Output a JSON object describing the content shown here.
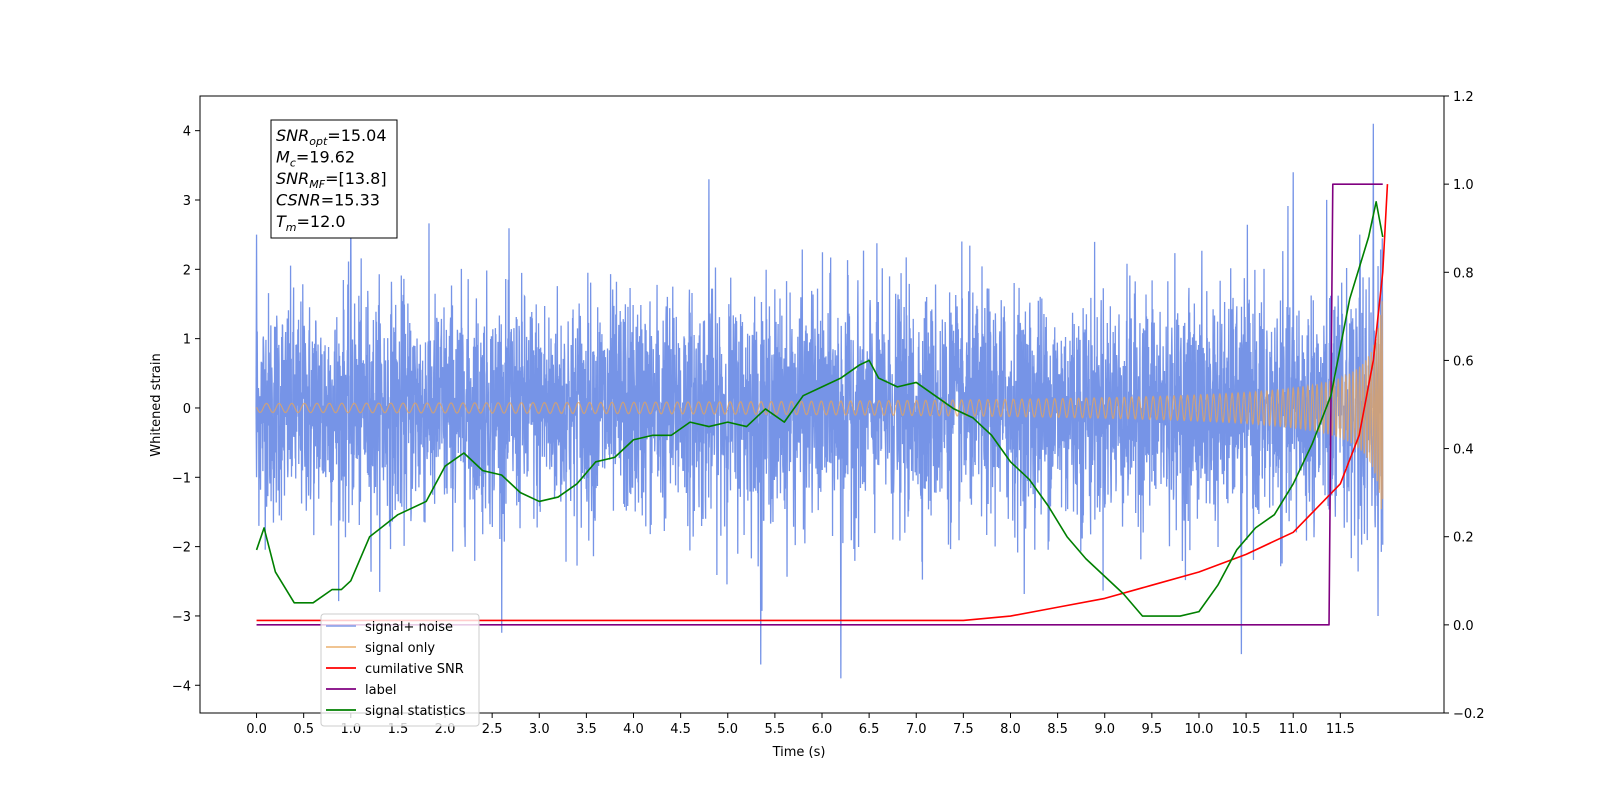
{
  "chart_data": {
    "type": "line",
    "xlabel": "Time (s)",
    "ylabel": "Whitened strain",
    "xlim": [
      -0.6,
      12.6
    ],
    "ylim": [
      -4.4,
      4.5
    ],
    "y2lim": [
      -0.2,
      1.2
    ],
    "xticks": [
      0.0,
      0.5,
      1.0,
      1.5,
      2.0,
      2.5,
      3.0,
      3.5,
      4.0,
      4.5,
      5.0,
      5.5,
      6.0,
      6.5,
      7.0,
      7.5,
      8.0,
      8.5,
      9.0,
      9.5,
      10.0,
      10.5,
      11.0,
      11.5
    ],
    "xtick_labels": [
      "0.0",
      "0.5",
      "1.0",
      "1.5",
      "2.0",
      "2.5",
      "3.0",
      "3.5",
      "4.0",
      "4.5",
      "5.0",
      "5.5",
      "6.0",
      "6.5",
      "7.0",
      "7.5",
      "8.0",
      "8.5",
      "9.0",
      "9.5",
      "10.0",
      "10.5",
      "11.0",
      "11.5"
    ],
    "yticks": [
      -4,
      -3,
      -2,
      -1,
      0,
      1,
      2,
      3,
      4
    ],
    "ytick_labels": [
      "−4",
      "−3",
      "−2",
      "−1",
      "0",
      "1",
      "2",
      "3",
      "4"
    ],
    "y2ticks": [
      -0.2,
      0.0,
      0.2,
      0.4,
      0.6,
      0.8,
      1.0,
      1.2
    ],
    "y2tick_labels": [
      "−0.2",
      "0.0",
      "0.2",
      "0.4",
      "0.6",
      "0.8",
      "1.0",
      "1.2"
    ],
    "grid": false,
    "legend_position": "lower-left",
    "annotation": {
      "lines": [
        {
          "sym": "SNR",
          "sub": "opt",
          "value": "=15.04"
        },
        {
          "sym": "M",
          "sub": "c",
          "value": "=19.62"
        },
        {
          "sym": "SNR",
          "sub": "MF",
          "value": "=[13.8]"
        },
        {
          "sym": "CSNR",
          "sub": "",
          "value": "=15.33"
        },
        {
          "sym": "T",
          "sub": "m",
          "value": "=12.0"
        }
      ]
    },
    "series": [
      {
        "name": "signal+ noise",
        "axis": "left",
        "color": "#6f8ee6",
        "noise_std": 0.8,
        "extremes": [
          [
            0.0,
            2.5
          ],
          [
            0.0,
            -1.0
          ],
          [
            5.35,
            -3.7
          ],
          [
            6.2,
            -3.9
          ],
          [
            10.45,
            -3.55
          ],
          [
            11.85,
            4.1
          ],
          [
            11.9,
            -3.0
          ],
          [
            1.0,
            3.2
          ],
          [
            4.8,
            3.3
          ],
          [
            11.0,
            3.4
          ]
        ]
      },
      {
        "name": "signal only",
        "axis": "left",
        "color": "#e8a45a",
        "chirp": {
          "t_start": 0.0,
          "t_merge": 12.0,
          "amp_max": 3.0
        }
      },
      {
        "name": "cumilative SNR",
        "axis": "right",
        "color": "#ff0000",
        "x": [
          0.0,
          7.5,
          8.0,
          8.5,
          9.0,
          9.5,
          10.0,
          10.5,
          11.0,
          11.5,
          11.7,
          11.85,
          11.95,
          12.0
        ],
        "y": [
          0.01,
          0.01,
          0.02,
          0.04,
          0.06,
          0.09,
          0.12,
          0.16,
          0.21,
          0.32,
          0.43,
          0.6,
          0.8,
          1.0
        ]
      },
      {
        "name": "label",
        "axis": "right",
        "color": "#800080",
        "x": [
          0.0,
          11.38,
          11.42,
          11.95
        ],
        "y": [
          0.0,
          0.0,
          1.0,
          1.0
        ]
      },
      {
        "name": "signal statistics",
        "axis": "right",
        "color": "#008000",
        "x": [
          0.0,
          0.08,
          0.2,
          0.4,
          0.6,
          0.8,
          0.9,
          1.0,
          1.2,
          1.5,
          1.8,
          2.0,
          2.2,
          2.4,
          2.6,
          2.8,
          3.0,
          3.2,
          3.4,
          3.6,
          3.8,
          4.0,
          4.2,
          4.4,
          4.6,
          4.8,
          5.0,
          5.2,
          5.4,
          5.6,
          5.8,
          6.0,
          6.2,
          6.4,
          6.5,
          6.6,
          6.8,
          7.0,
          7.2,
          7.4,
          7.6,
          7.8,
          8.0,
          8.2,
          8.4,
          8.6,
          8.8,
          9.0,
          9.2,
          9.4,
          9.6,
          9.8,
          10.0,
          10.2,
          10.4,
          10.6,
          10.8,
          11.0,
          11.2,
          11.4,
          11.6,
          11.8,
          11.88,
          11.95
        ],
        "y": [
          0.17,
          0.22,
          0.12,
          0.05,
          0.05,
          0.08,
          0.08,
          0.1,
          0.2,
          0.25,
          0.28,
          0.36,
          0.39,
          0.35,
          0.34,
          0.3,
          0.28,
          0.29,
          0.32,
          0.37,
          0.38,
          0.42,
          0.43,
          0.43,
          0.46,
          0.45,
          0.46,
          0.45,
          0.49,
          0.46,
          0.52,
          0.54,
          0.56,
          0.59,
          0.6,
          0.56,
          0.54,
          0.55,
          0.52,
          0.49,
          0.47,
          0.43,
          0.37,
          0.33,
          0.27,
          0.2,
          0.15,
          0.11,
          0.07,
          0.02,
          0.02,
          0.02,
          0.03,
          0.09,
          0.17,
          0.22,
          0.25,
          0.32,
          0.41,
          0.52,
          0.74,
          0.88,
          0.96,
          0.88
        ]
      }
    ]
  }
}
